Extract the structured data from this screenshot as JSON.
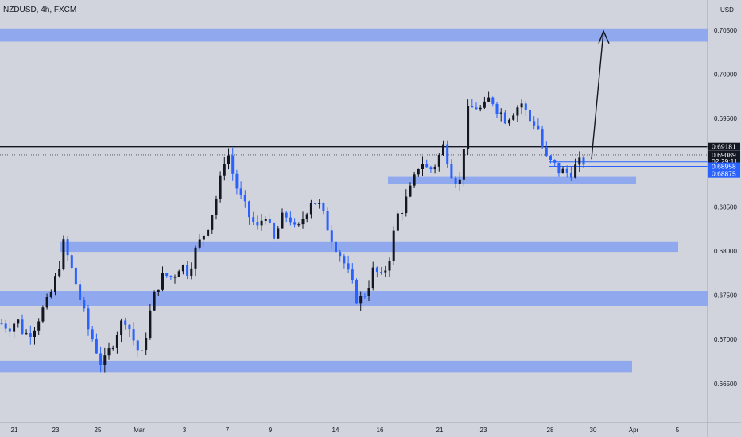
{
  "header": {
    "symbol": "NZDUSD, 4h, FXCM",
    "currency": "USD"
  },
  "colors": {
    "background": "#d1d4dc",
    "zone": "#8fa8ee",
    "up": "#131722",
    "down": "#2962ff",
    "black_tag": "#131722",
    "blue_tag": "#2962ff"
  },
  "chart_data": {
    "type": "candlestick",
    "title": "NZDUSD, 4h, FXCM",
    "ylabel": "USD",
    "ylim": [
      0.6625,
      0.7075
    ],
    "y_ticks": [
      "0.70500",
      "0.70000",
      "0.69500",
      "0.69000",
      "0.68500",
      "0.68000",
      "0.67500",
      "0.67000",
      "0.66500"
    ],
    "x_ticks": [
      "21",
      "23",
      "25",
      "Mar",
      "3",
      "7",
      "9",
      "14",
      "16",
      "21",
      "23",
      "28",
      "30",
      "Apr",
      "5"
    ],
    "zones": [
      {
        "low": 0.7037,
        "high": 0.7052
      },
      {
        "low": 0.6876,
        "high": 0.6884
      },
      {
        "low": 0.6799,
        "high": 0.6811
      },
      {
        "low": 0.6738,
        "high": 0.6755
      },
      {
        "low": 0.6663,
        "high": 0.6676
      }
    ],
    "levels": [
      {
        "price": 0.69181,
        "label": "0.69181",
        "style": "black-solid"
      },
      {
        "price": 0.69089,
        "label": "0.69089",
        "style": "dotted"
      },
      {
        "price": 0.68958,
        "label": "0.68958",
        "style": "blue-solid"
      },
      {
        "price": 0.68875,
        "label": "0.68875",
        "style": "blue-solid"
      }
    ],
    "countdown": "02:29:11",
    "projection": {
      "from": 0.6904,
      "to": 0.7049
    },
    "price_path": [
      0.6718,
      0.6715,
      0.6722,
      0.6705,
      0.6712,
      0.6729,
      0.6742,
      0.677,
      0.6808,
      0.678,
      0.675,
      0.6715,
      0.6695,
      0.6668,
      0.669,
      0.6712,
      0.6725,
      0.67,
      0.6678,
      0.6725,
      0.676,
      0.6773,
      0.677,
      0.6785,
      0.6778,
      0.68,
      0.6818,
      0.684,
      0.687,
      0.6918,
      0.688,
      0.6855,
      0.6838,
      0.6825,
      0.6845,
      0.6808,
      0.6835,
      0.6842,
      0.6818,
      0.6842,
      0.686,
      0.685,
      0.6828,
      0.6808,
      0.679,
      0.6765,
      0.6742,
      0.6755,
      0.678,
      0.6768,
      0.6795,
      0.684,
      0.6855,
      0.6875,
      0.6905,
      0.689,
      0.69,
      0.692,
      0.689,
      0.6875,
      0.6955,
      0.6965,
      0.6958,
      0.6975,
      0.696,
      0.695,
      0.696,
      0.6968,
      0.6948,
      0.6945,
      0.6905,
      0.6898,
      0.689,
      0.6888,
      0.6895,
      0.6902
    ]
  }
}
